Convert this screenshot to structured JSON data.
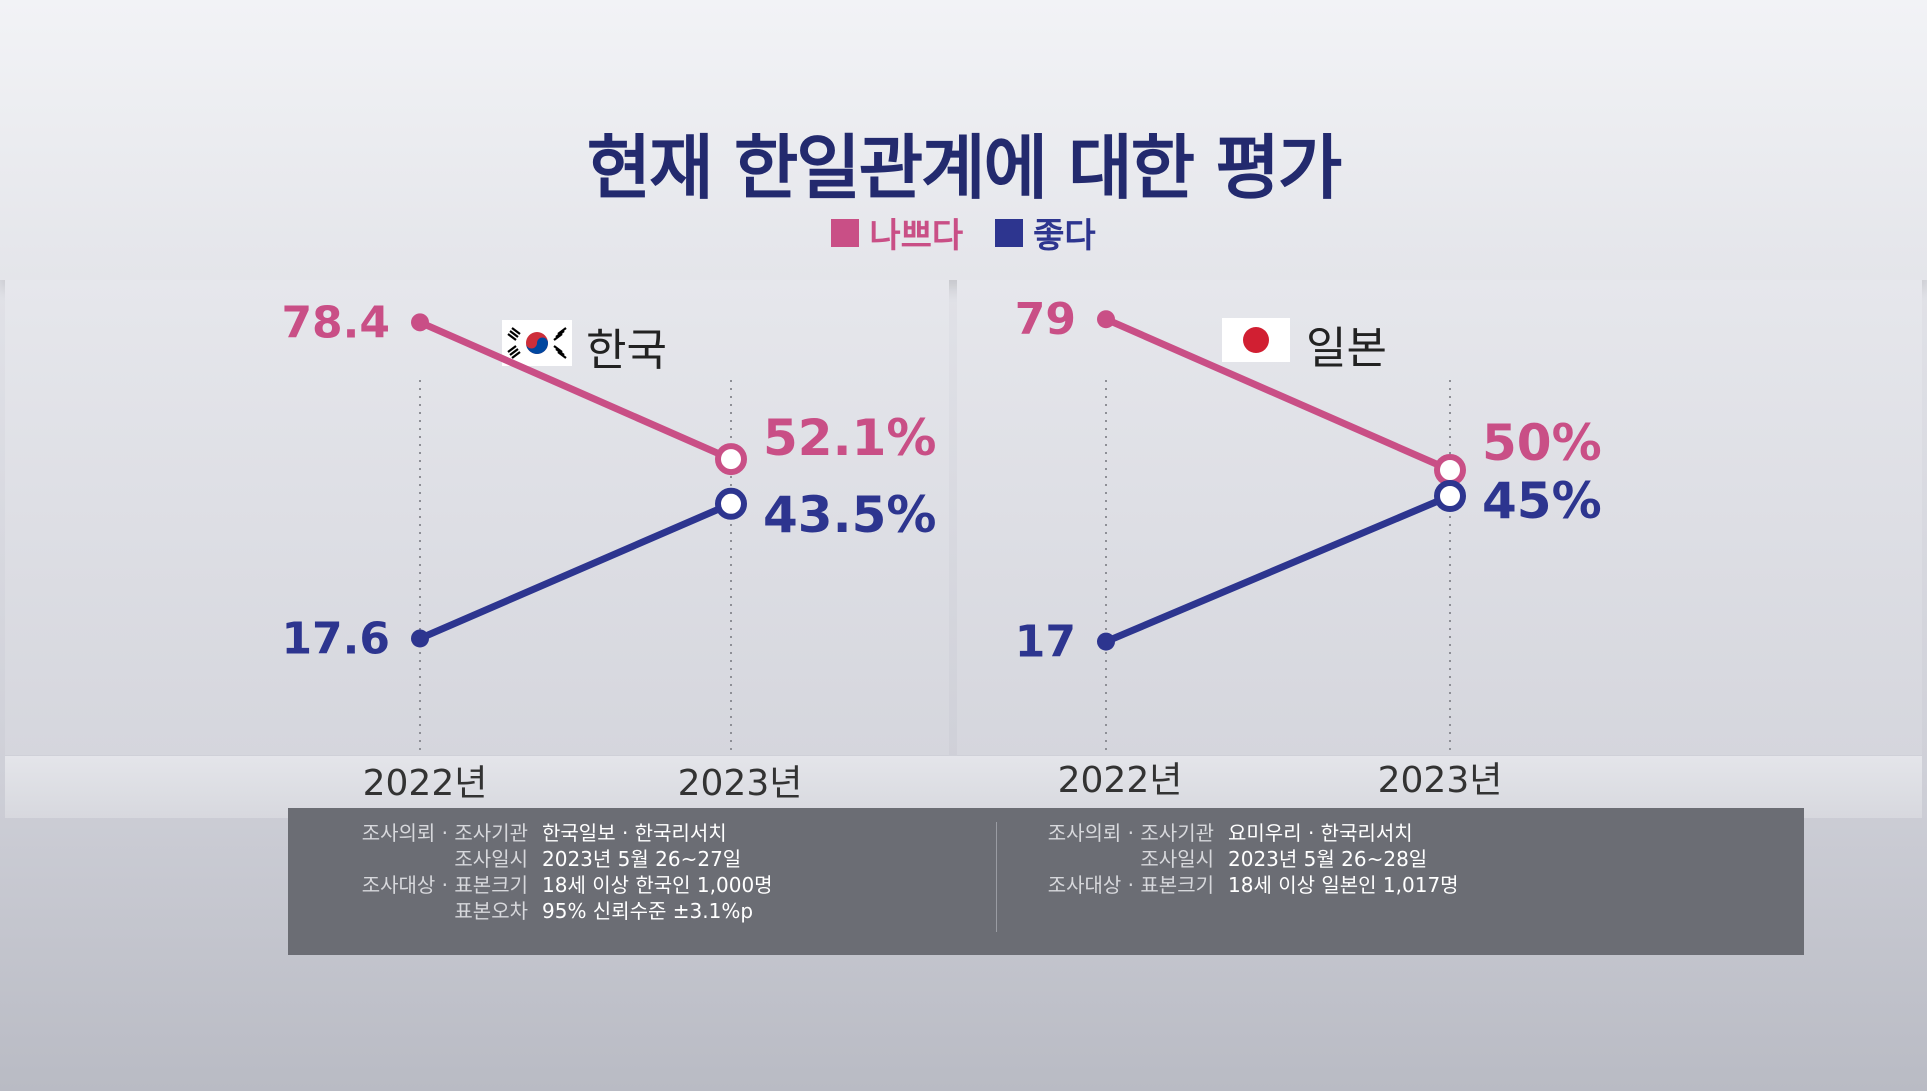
{
  "title": "현재 한일관계에 대한 평가",
  "legend": [
    {
      "label": "나쁘다",
      "color": "#c94f86"
    },
    {
      "label": "좋다",
      "color": "#2d358f"
    }
  ],
  "chart_data": [
    {
      "type": "line",
      "title": "한국",
      "flag": "korea-flag-icon",
      "categories": [
        "2022년",
        "2023년"
      ],
      "series": [
        {
          "name": "나쁘다",
          "values": [
            78.4,
            52.1
          ],
          "labels": [
            "78.4",
            "52.1%"
          ],
          "color": "#c94f86"
        },
        {
          "name": "좋다",
          "values": [
            17.6,
            43.5
          ],
          "labels": [
            "17.6",
            "43.5%"
          ],
          "color": "#2d358f"
        }
      ]
    },
    {
      "type": "line",
      "title": "일본",
      "flag": "japan-flag-icon",
      "categories": [
        "2022년",
        "2023년"
      ],
      "series": [
        {
          "name": "나쁘다",
          "values": [
            79,
            50
          ],
          "labels": [
            "79",
            "50%"
          ],
          "color": "#c94f86"
        },
        {
          "name": "좋다",
          "values": [
            17,
            45
          ],
          "labels": [
            "17",
            "45%"
          ],
          "color": "#2d358f"
        }
      ]
    }
  ],
  "survey_info": {
    "left": [
      {
        "key": "조사의뢰 · 조사기관",
        "value": "한국일보 · 한국리서치"
      },
      {
        "key": "조사일시",
        "value": "2023년 5월 26~27일"
      },
      {
        "key": "조사대상 · 표본크기",
        "value": "18세 이상 한국인 1,000명"
      },
      {
        "key": "표본오차",
        "value": "95% 신뢰수준 ±3.1%p"
      }
    ],
    "right": [
      {
        "key": "조사의뢰 · 조사기관",
        "value": "요미우리 · 한국리서치"
      },
      {
        "key": "조사일시",
        "value": "2023년 5월 26~28일"
      },
      {
        "key": "조사대상 · 표본크기",
        "value": "18세 이상 일본인 1,017명"
      }
    ]
  }
}
